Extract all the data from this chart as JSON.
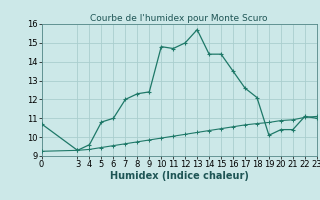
{
  "title": "Courbe de l'humidex pour Monte Scuro",
  "xlabel": "Humidex (Indice chaleur)",
  "background_color": "#cce8e8",
  "line_color": "#1e7868",
  "grid_color": "#aacece",
  "xlim": [
    0,
    23
  ],
  "ylim": [
    9,
    16
  ],
  "xticks": [
    0,
    3,
    4,
    5,
    6,
    7,
    8,
    9,
    10,
    11,
    12,
    13,
    14,
    15,
    16,
    17,
    18,
    19,
    20,
    21,
    22,
    23
  ],
  "yticks": [
    9,
    10,
    11,
    12,
    13,
    14,
    15,
    16
  ],
  "line1_x": [
    0,
    3,
    4,
    5,
    6,
    7,
    8,
    9,
    10,
    11,
    12,
    13,
    14,
    15,
    16,
    17,
    18,
    19,
    20,
    21,
    22,
    23
  ],
  "line1_y": [
    10.7,
    9.3,
    9.6,
    10.8,
    11.0,
    12.0,
    12.3,
    12.4,
    14.8,
    14.7,
    15.0,
    15.7,
    14.4,
    14.4,
    13.5,
    12.6,
    12.1,
    10.1,
    10.4,
    10.4,
    11.1,
    11.0
  ],
  "line2_x": [
    0,
    3,
    4,
    5,
    6,
    7,
    8,
    9,
    10,
    11,
    12,
    13,
    14,
    15,
    16,
    17,
    18,
    19,
    20,
    21,
    22,
    23
  ],
  "line2_y": [
    9.25,
    9.3,
    9.35,
    9.45,
    9.55,
    9.65,
    9.75,
    9.85,
    9.95,
    10.05,
    10.15,
    10.25,
    10.35,
    10.45,
    10.55,
    10.65,
    10.72,
    10.78,
    10.88,
    10.92,
    11.05,
    11.1
  ],
  "fontsize_tick": 6,
  "fontsize_xlabel": 7,
  "title_fontsize": 6.5
}
